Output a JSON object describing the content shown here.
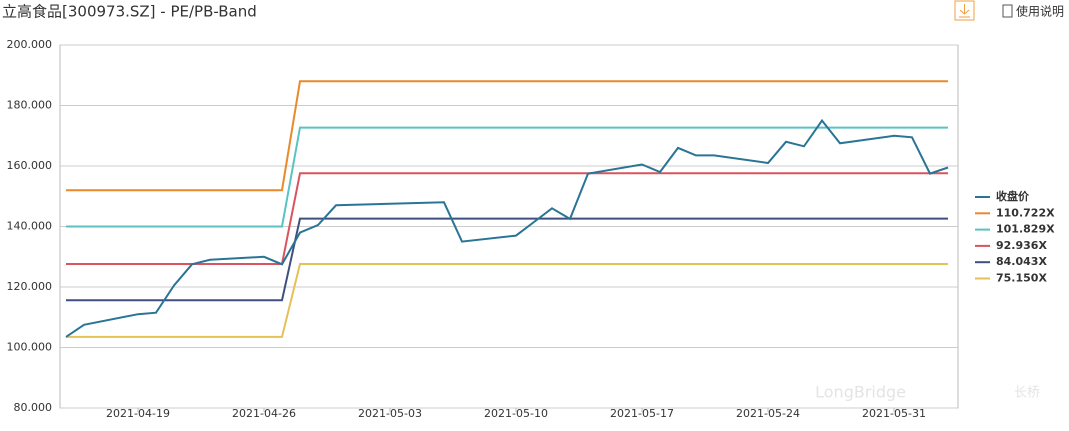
{
  "header": {
    "title": "立高食品[300973.SZ] - PE/PB-Band",
    "help": "使用说明"
  },
  "watermark": {
    "brand": "LongBridge",
    "local": "长桥"
  },
  "chart_data": {
    "type": "line",
    "x": [
      "2021-04-15",
      "2021-04-16",
      "2021-04-19",
      "2021-04-20",
      "2021-04-21",
      "2021-04-22",
      "2021-04-23",
      "2021-04-26",
      "2021-04-27",
      "2021-04-28",
      "2021-04-29",
      "2021-04-30",
      "2021-05-06",
      "2021-05-07",
      "2021-05-10",
      "2021-05-11",
      "2021-05-12",
      "2021-05-13",
      "2021-05-14",
      "2021-05-17",
      "2021-05-18",
      "2021-05-19",
      "2021-05-20",
      "2021-05-21",
      "2021-05-24",
      "2021-05-25",
      "2021-05-26",
      "2021-05-27",
      "2021-05-28",
      "2021-05-31",
      "2021-06-01",
      "2021-06-02",
      "2021-06-03"
    ],
    "series": [
      {
        "name": "收盘价",
        "color": "#2a7496",
        "values": [
          103.5,
          107.5,
          111,
          111.5,
          120.5,
          127.5,
          129,
          130,
          127.5,
          138,
          140.5,
          147,
          148,
          135,
          137,
          141.5,
          146,
          142.5,
          157.5,
          160.5,
          158,
          166,
          163.5,
          163.5,
          161,
          168,
          166.5,
          175,
          167.5,
          170,
          169.5,
          157.5,
          159.5
        ]
      },
      {
        "name": "110.722X",
        "color": "#e8892b",
        "values": [
          152,
          152,
          152,
          152,
          152,
          152,
          152,
          152,
          152,
          188,
          188,
          188,
          188,
          188,
          188,
          188,
          188,
          188,
          188,
          188,
          188,
          188,
          188,
          188,
          188,
          188,
          188,
          188,
          188,
          188,
          188,
          188,
          188
        ]
      },
      {
        "name": "101.829X",
        "color": "#5bc2c2",
        "values": [
          140,
          140,
          140,
          140,
          140,
          140,
          140,
          140,
          140,
          172.7,
          172.7,
          172.7,
          172.7,
          172.7,
          172.7,
          172.7,
          172.7,
          172.7,
          172.7,
          172.7,
          172.7,
          172.7,
          172.7,
          172.7,
          172.7,
          172.7,
          172.7,
          172.7,
          172.7,
          172.7,
          172.7,
          172.7,
          172.7
        ]
      },
      {
        "name": "92.936X",
        "color": "#d9545e",
        "values": [
          127.6,
          127.6,
          127.6,
          127.6,
          127.6,
          127.6,
          127.6,
          127.6,
          127.6,
          157.6,
          157.6,
          157.6,
          157.6,
          157.6,
          157.6,
          157.6,
          157.6,
          157.6,
          157.6,
          157.6,
          157.6,
          157.6,
          157.6,
          157.6,
          157.6,
          157.6,
          157.6,
          157.6,
          157.6,
          157.6,
          157.6,
          157.6,
          157.6
        ]
      },
      {
        "name": "84.043X",
        "color": "#3e4f80",
        "values": [
          115.6,
          115.6,
          115.6,
          115.6,
          115.6,
          115.6,
          115.6,
          115.6,
          115.6,
          142.6,
          142.6,
          142.6,
          142.6,
          142.6,
          142.6,
          142.6,
          142.6,
          142.6,
          142.6,
          142.6,
          142.6,
          142.6,
          142.6,
          142.6,
          142.6,
          142.6,
          142.6,
          142.6,
          142.6,
          142.6,
          142.6,
          142.6,
          142.6
        ]
      },
      {
        "name": "75.150X",
        "color": "#e5c158",
        "values": [
          103.5,
          103.5,
          103.5,
          103.5,
          103.5,
          103.5,
          103.5,
          103.5,
          103.5,
          127.6,
          127.6,
          127.6,
          127.6,
          127.6,
          127.6,
          127.6,
          127.6,
          127.6,
          127.6,
          127.6,
          127.6,
          127.6,
          127.6,
          127.6,
          127.6,
          127.6,
          127.6,
          127.6,
          127.6,
          127.6,
          127.6,
          127.6,
          127.6
        ]
      }
    ],
    "xlim": [
      "2021-04-15",
      "2021-06-03"
    ],
    "xticks": [
      "2021-04-19",
      "2021-04-26",
      "2021-05-03",
      "2021-05-10",
      "2021-05-17",
      "2021-05-24",
      "2021-05-31"
    ],
    "ylim": [
      80,
      200
    ],
    "yticks": [
      {
        "value": 80,
        "label": "80.000"
      },
      {
        "value": 100,
        "label": "100.000"
      },
      {
        "value": 120,
        "label": "120.000"
      },
      {
        "value": 140,
        "label": "140.000"
      },
      {
        "value": 160,
        "label": "160.000"
      },
      {
        "value": 180,
        "label": "180.000"
      },
      {
        "value": 200,
        "label": "200.000"
      }
    ],
    "grid": true,
    "legend": "right"
  }
}
